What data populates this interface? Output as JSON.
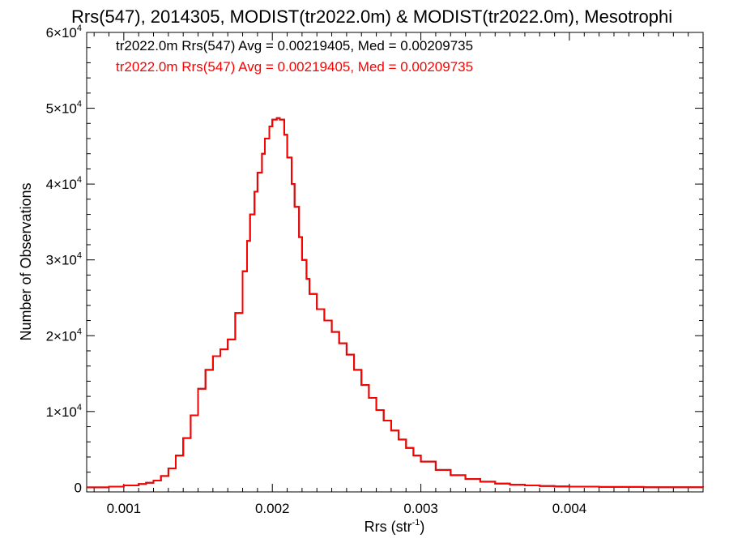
{
  "chart_data": {
    "type": "line",
    "title": "Rrs(547), 2014305, MODIST(tr2022.0m) & MODIST(tr2022.0m), Mesotrophi",
    "xlabel": "Rrs (str",
    "xlabel_sup": "-1",
    "xlabel_end": ")",
    "ylabel": "Number of Observations",
    "xlim": [
      0.00075,
      0.0049
    ],
    "ylim": [
      -600,
      60000
    ],
    "x_ticks": [
      {
        "value": 0.001,
        "label": "0.001"
      },
      {
        "value": 0.002,
        "label": "0.002"
      },
      {
        "value": 0.003,
        "label": "0.003"
      },
      {
        "value": 0.004,
        "label": "0.004"
      }
    ],
    "y_ticks": [
      {
        "value": 0,
        "mant": "0",
        "exp": ""
      },
      {
        "value": 10000,
        "mant": "1×10",
        "exp": "4"
      },
      {
        "value": 20000,
        "mant": "2×10",
        "exp": "4"
      },
      {
        "value": 30000,
        "mant": "3×10",
        "exp": "4"
      },
      {
        "value": 40000,
        "mant": "4×10",
        "exp": "4"
      },
      {
        "value": 50000,
        "mant": "5×10",
        "exp": "4"
      },
      {
        "value": 60000,
        "mant": "6×10",
        "exp": "4"
      }
    ],
    "legend_position": "top-left",
    "grid": false,
    "series": [
      {
        "name": "tr2022.0m Rrs(547) Avg = 0.00219405, Med = 0.00209735",
        "color": "#000000",
        "x": [
          0.00075,
          0.0009,
          0.001,
          0.0011,
          0.00115,
          0.0012,
          0.00125,
          0.0013,
          0.00135,
          0.0014,
          0.00145,
          0.0015,
          0.00155,
          0.0016,
          0.00165,
          0.0017,
          0.00175,
          0.0018,
          0.00183,
          0.00185,
          0.00188,
          0.0019,
          0.00193,
          0.00195,
          0.00198,
          0.002,
          0.00203,
          0.00205,
          0.00208,
          0.0021,
          0.00213,
          0.00215,
          0.00218,
          0.0022,
          0.00223,
          0.00225,
          0.0023,
          0.00235,
          0.0024,
          0.00245,
          0.0025,
          0.00255,
          0.0026,
          0.00265,
          0.0027,
          0.00275,
          0.0028,
          0.00285,
          0.0029,
          0.00295,
          0.003,
          0.0031,
          0.0032,
          0.0033,
          0.0034,
          0.0035,
          0.0036,
          0.0037,
          0.0038,
          0.0039,
          0.004,
          0.0042,
          0.0045,
          0.0049
        ],
        "y": [
          0,
          100,
          250,
          450,
          600,
          900,
          1500,
          2500,
          4200,
          6500,
          9500,
          13000,
          15500,
          17300,
          18200,
          19500,
          23000,
          28500,
          32500,
          36000,
          39000,
          41500,
          44000,
          46000,
          47600,
          48500,
          48700,
          48500,
          46500,
          43500,
          40000,
          37000,
          33000,
          30000,
          27500,
          25500,
          23500,
          22000,
          20500,
          19000,
          17500,
          15500,
          13500,
          11800,
          10200,
          8800,
          7500,
          6300,
          5200,
          4200,
          3400,
          2300,
          1600,
          1100,
          750,
          500,
          350,
          250,
          180,
          130,
          90,
          50,
          20,
          0
        ]
      },
      {
        "name": "tr2022.0m Rrs(547) Avg = 0.00219405, Med = 0.00209735",
        "color": "#ff0000",
        "x": [
          0.00075,
          0.0009,
          0.001,
          0.0011,
          0.00115,
          0.0012,
          0.00125,
          0.0013,
          0.00135,
          0.0014,
          0.00145,
          0.0015,
          0.00155,
          0.0016,
          0.00165,
          0.0017,
          0.00175,
          0.0018,
          0.00183,
          0.00185,
          0.00188,
          0.0019,
          0.00193,
          0.00195,
          0.00198,
          0.002,
          0.00203,
          0.00205,
          0.00208,
          0.0021,
          0.00213,
          0.00215,
          0.00218,
          0.0022,
          0.00223,
          0.00225,
          0.0023,
          0.00235,
          0.0024,
          0.00245,
          0.0025,
          0.00255,
          0.0026,
          0.00265,
          0.0027,
          0.00275,
          0.0028,
          0.00285,
          0.0029,
          0.00295,
          0.003,
          0.0031,
          0.0032,
          0.0033,
          0.0034,
          0.0035,
          0.0036,
          0.0037,
          0.0038,
          0.0039,
          0.004,
          0.0042,
          0.0045,
          0.0049
        ],
        "y": [
          0,
          100,
          250,
          450,
          600,
          900,
          1500,
          2500,
          4200,
          6500,
          9500,
          13000,
          15500,
          17300,
          18200,
          19500,
          23000,
          28500,
          32500,
          36000,
          39000,
          41500,
          44000,
          46000,
          47600,
          48500,
          48700,
          48500,
          46500,
          43500,
          40000,
          37000,
          33000,
          30000,
          27500,
          25500,
          23500,
          22000,
          20500,
          19000,
          17500,
          15500,
          13500,
          11800,
          10200,
          8800,
          7500,
          6300,
          5200,
          4200,
          3400,
          2300,
          1600,
          1100,
          750,
          500,
          350,
          250,
          180,
          130,
          90,
          50,
          20,
          0
        ]
      }
    ]
  }
}
